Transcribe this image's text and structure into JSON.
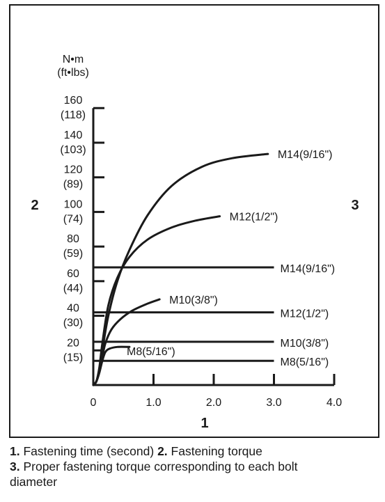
{
  "chart_data": {
    "type": "line",
    "unit_label": "N•m",
    "unit_label_alt": "(ft•lbs)",
    "x_ticks": [
      "0",
      "1.0",
      "2.0",
      "3.0",
      "4.0"
    ],
    "x_tick_values": [
      0,
      1,
      2,
      3,
      4
    ],
    "xlim": [
      0,
      4
    ],
    "y_ticks": [
      {
        "nm": "160",
        "ftlbs": "(118)",
        "value": 160
      },
      {
        "nm": "140",
        "ftlbs": "(103)",
        "value": 140
      },
      {
        "nm": "120",
        "ftlbs": "(89)",
        "value": 120
      },
      {
        "nm": "100",
        "ftlbs": "(74)",
        "value": 100
      },
      {
        "nm": "80",
        "ftlbs": "(59)",
        "value": 80
      },
      {
        "nm": "60",
        "ftlbs": "(44)",
        "value": 60
      },
      {
        "nm": "40",
        "ftlbs": "(30)",
        "value": 40
      },
      {
        "nm": "20",
        "ftlbs": "(15)",
        "value": 20
      }
    ],
    "ylim": [
      0,
      160
    ],
    "axis_markers": {
      "x": "1",
      "y": "2",
      "right": "3"
    },
    "curves": [
      {
        "name": "M14(9/16\")",
        "points": [
          [
            0,
            0
          ],
          [
            0.05,
            2
          ],
          [
            0.1,
            8
          ],
          [
            0.15,
            20
          ],
          [
            0.25,
            40
          ],
          [
            0.4,
            60
          ],
          [
            0.6,
            78
          ],
          [
            0.9,
            98
          ],
          [
            1.3,
            115
          ],
          [
            1.8,
            126
          ],
          [
            2.3,
            131
          ],
          [
            2.9,
            133.5
          ]
        ]
      },
      {
        "name": "M12(1/2\")",
        "points": [
          [
            0,
            0
          ],
          [
            0.05,
            2
          ],
          [
            0.1,
            10
          ],
          [
            0.15,
            24
          ],
          [
            0.25,
            46
          ],
          [
            0.4,
            62
          ],
          [
            0.6,
            74
          ],
          [
            0.9,
            84
          ],
          [
            1.3,
            91
          ],
          [
            1.7,
            95
          ],
          [
            2.1,
            97.5
          ]
        ]
      },
      {
        "name": "M10(3/8\")",
        "points": [
          [
            0,
            0
          ],
          [
            0.05,
            2
          ],
          [
            0.1,
            8
          ],
          [
            0.15,
            16
          ],
          [
            0.2,
            24
          ],
          [
            0.3,
            32
          ],
          [
            0.45,
            38
          ],
          [
            0.65,
            43
          ],
          [
            0.9,
            47
          ],
          [
            1.1,
            49.5
          ]
        ]
      },
      {
        "name": "M8(5/16\")",
        "points": [
          [
            0,
            0
          ],
          [
            0.05,
            2
          ],
          [
            0.1,
            7
          ],
          [
            0.15,
            14
          ],
          [
            0.2,
            19
          ],
          [
            0.27,
            21
          ],
          [
            0.4,
            22
          ],
          [
            0.6,
            22
          ]
        ]
      }
    ],
    "reference_lines": [
      {
        "name": "M14(9/16\")",
        "value": 68,
        "x_start": 0,
        "x_end": 3.0
      },
      {
        "name": "M12(1/2\")",
        "value": 42,
        "x_start": 0,
        "x_end": 3.0
      },
      {
        "name": "M10(3/8\")",
        "value": 25,
        "x_start": 0,
        "x_end": 3.0
      },
      {
        "name": "M8(5/16\")",
        "value": 14,
        "x_start": 0,
        "x_end": 3.0
      }
    ],
    "color": "#1a1a1a"
  },
  "caption": {
    "line1_num1": "1.",
    "line1_text1": " Fastening time (second) ",
    "line1_num2": "2.",
    "line1_text2": " Fastening torque",
    "line2_num": "3.",
    "line2_text": " Proper fastening torque corresponding to each bolt",
    "line3_text": "diameter"
  }
}
